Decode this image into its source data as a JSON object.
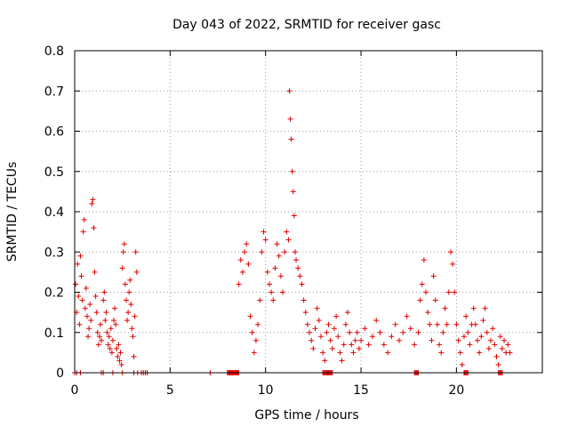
{
  "chart_data": {
    "type": "scatter",
    "title": "Day 043 of 2022, SRMTID for receiver gasc",
    "xlabel": "GPS time / hours",
    "ylabel": "SRMTID / TECUs",
    "xlim": [
      0,
      24.5
    ],
    "ylim": [
      0,
      0.8
    ],
    "xticks": [
      0,
      5,
      10,
      15,
      20
    ],
    "xtick_labels": [
      "0",
      "5",
      "10",
      "15",
      "20"
    ],
    "yticks": [
      0,
      0.1,
      0.2,
      0.3,
      0.4,
      0.5,
      0.6,
      0.7,
      0.8
    ],
    "ytick_labels": [
      "0",
      "0.1",
      "0.2",
      "0.3",
      "0.4",
      "0.5",
      "0.6",
      "0.7",
      "0.8"
    ],
    "grid": true,
    "marker": "+",
    "color": "#e00000",
    "series": [
      {
        "name": "SRMTID",
        "points": [
          [
            0.05,
            0.22
          ],
          [
            0.1,
            0.15
          ],
          [
            0.15,
            0.27
          ],
          [
            0.2,
            0.19
          ],
          [
            0.25,
            0.12
          ],
          [
            0.3,
            0.29
          ],
          [
            0.35,
            0.24
          ],
          [
            0.4,
            0.18
          ],
          [
            0.45,
            0.35
          ],
          [
            0.5,
            0.38
          ],
          [
            0.55,
            0.16
          ],
          [
            0.6,
            0.21
          ],
          [
            0.65,
            0.14
          ],
          [
            0.7,
            0.09
          ],
          [
            0.75,
            0.11
          ],
          [
            0.8,
            0.17
          ],
          [
            0.85,
            0.13
          ],
          [
            0.9,
            0.42
          ],
          [
            0.95,
            0.43
          ],
          [
            1.0,
            0.36
          ],
          [
            1.05,
            0.25
          ],
          [
            1.1,
            0.19
          ],
          [
            1.15,
            0.15
          ],
          [
            1.2,
            0.1
          ],
          [
            1.25,
            0.07
          ],
          [
            1.3,
            0.09
          ],
          [
            1.35,
            0.12
          ],
          [
            1.4,
            0.08
          ],
          [
            1.5,
            0.18
          ],
          [
            1.55,
            0.2
          ],
          [
            1.6,
            0.13
          ],
          [
            1.65,
            0.15
          ],
          [
            1.7,
            0.1
          ],
          [
            1.75,
            0.07
          ],
          [
            1.8,
            0.09
          ],
          [
            1.85,
            0.06
          ],
          [
            1.9,
            0.11
          ],
          [
            1.95,
            0.05
          ],
          [
            2.0,
            0.08
          ],
          [
            2.05,
            0.13
          ],
          [
            2.1,
            0.16
          ],
          [
            2.15,
            0.12
          ],
          [
            2.2,
            0.06
          ],
          [
            2.25,
            0.04
          ],
          [
            2.3,
            0.07
          ],
          [
            2.35,
            0.03
          ],
          [
            2.4,
            0.05
          ],
          [
            2.45,
            0.02
          ],
          [
            2.5,
            0.26
          ],
          [
            2.55,
            0.3
          ],
          [
            2.6,
            0.32
          ],
          [
            2.65,
            0.22
          ],
          [
            2.7,
            0.18
          ],
          [
            2.75,
            0.13
          ],
          [
            2.8,
            0.15
          ],
          [
            2.85,
            0.2
          ],
          [
            2.9,
            0.23
          ],
          [
            2.95,
            0.17
          ],
          [
            3.0,
            0.11
          ],
          [
            3.05,
            0.09
          ],
          [
            3.1,
            0.04
          ],
          [
            3.15,
            0.14
          ],
          [
            3.2,
            0.3
          ],
          [
            3.25,
            0.25
          ],
          [
            0.0,
            0.0
          ],
          [
            0.1,
            0.0
          ],
          [
            0.3,
            0.0
          ],
          [
            1.4,
            0.0
          ],
          [
            1.5,
            0.0
          ],
          [
            2.0,
            0.0
          ],
          [
            2.5,
            0.0
          ],
          [
            3.1,
            0.0
          ],
          [
            3.3,
            0.0
          ],
          [
            3.5,
            0.0
          ],
          [
            3.6,
            0.0
          ],
          [
            3.7,
            0.0
          ],
          [
            3.8,
            0.0
          ],
          [
            7.1,
            0.0
          ],
          [
            8.1,
            0.0
          ],
          [
            8.2,
            0.0
          ],
          [
            8.3,
            0.0
          ],
          [
            8.4,
            0.0
          ],
          [
            8.5,
            0.0
          ],
          [
            8.6,
            0.22
          ],
          [
            8.7,
            0.28
          ],
          [
            8.8,
            0.25
          ],
          [
            8.9,
            0.3
          ],
          [
            9.0,
            0.32
          ],
          [
            9.1,
            0.27
          ],
          [
            9.2,
            0.14
          ],
          [
            9.3,
            0.1
          ],
          [
            9.4,
            0.05
          ],
          [
            9.5,
            0.08
          ],
          [
            9.6,
            0.12
          ],
          [
            9.7,
            0.18
          ],
          [
            9.8,
            0.3
          ],
          [
            9.9,
            0.35
          ],
          [
            10.0,
            0.33
          ],
          [
            10.1,
            0.25
          ],
          [
            10.2,
            0.22
          ],
          [
            10.3,
            0.2
          ],
          [
            10.4,
            0.18
          ],
          [
            10.5,
            0.26
          ],
          [
            10.6,
            0.32
          ],
          [
            10.7,
            0.29
          ],
          [
            10.8,
            0.24
          ],
          [
            10.9,
            0.2
          ],
          [
            11.0,
            0.3
          ],
          [
            11.1,
            0.35
          ],
          [
            11.2,
            0.33
          ],
          [
            11.25,
            0.7
          ],
          [
            11.3,
            0.63
          ],
          [
            11.35,
            0.58
          ],
          [
            11.4,
            0.5
          ],
          [
            11.45,
            0.45
          ],
          [
            11.5,
            0.39
          ],
          [
            11.55,
            0.3
          ],
          [
            11.6,
            0.28
          ],
          [
            11.7,
            0.26
          ],
          [
            11.8,
            0.24
          ],
          [
            11.9,
            0.22
          ],
          [
            12.0,
            0.18
          ],
          [
            12.1,
            0.15
          ],
          [
            12.2,
            0.12
          ],
          [
            12.3,
            0.1
          ],
          [
            12.4,
            0.08
          ],
          [
            12.5,
            0.06
          ],
          [
            12.6,
            0.11
          ],
          [
            12.7,
            0.16
          ],
          [
            12.8,
            0.13
          ],
          [
            12.9,
            0.09
          ],
          [
            13.0,
            0.05
          ],
          [
            13.1,
            0.03
          ],
          [
            13.2,
            0.1
          ],
          [
            13.3,
            0.12
          ],
          [
            13.4,
            0.08
          ],
          [
            13.5,
            0.06
          ],
          [
            13.6,
            0.11
          ],
          [
            13.7,
            0.14
          ],
          [
            13.8,
            0.09
          ],
          [
            13.9,
            0.05
          ],
          [
            14.0,
            0.03
          ],
          [
            14.1,
            0.07
          ],
          [
            14.2,
            0.12
          ],
          [
            14.3,
            0.15
          ],
          [
            14.4,
            0.1
          ],
          [
            14.5,
            0.07
          ],
          [
            14.6,
            0.05
          ],
          [
            14.7,
            0.08
          ],
          [
            14.8,
            0.1
          ],
          [
            14.9,
            0.06
          ],
          [
            15.0,
            0.08
          ],
          [
            15.2,
            0.11
          ],
          [
            15.4,
            0.07
          ],
          [
            15.6,
            0.09
          ],
          [
            15.8,
            0.13
          ],
          [
            16.0,
            0.1
          ],
          [
            16.2,
            0.07
          ],
          [
            16.4,
            0.05
          ],
          [
            16.6,
            0.09
          ],
          [
            16.8,
            0.12
          ],
          [
            17.0,
            0.08
          ],
          [
            17.2,
            0.1
          ],
          [
            17.4,
            0.14
          ],
          [
            17.6,
            0.11
          ],
          [
            17.8,
            0.07
          ],
          [
            18.0,
            0.1
          ],
          [
            18.1,
            0.18
          ],
          [
            18.2,
            0.22
          ],
          [
            18.3,
            0.28
          ],
          [
            18.4,
            0.2
          ],
          [
            18.5,
            0.15
          ],
          [
            18.6,
            0.12
          ],
          [
            18.7,
            0.08
          ],
          [
            18.8,
            0.24
          ],
          [
            18.9,
            0.18
          ],
          [
            19.0,
            0.12
          ],
          [
            19.1,
            0.07
          ],
          [
            19.2,
            0.05
          ],
          [
            19.3,
            0.1
          ],
          [
            19.4,
            0.16
          ],
          [
            19.5,
            0.12
          ],
          [
            19.6,
            0.2
          ],
          [
            19.7,
            0.3
          ],
          [
            19.8,
            0.27
          ],
          [
            19.9,
            0.2
          ],
          [
            20.0,
            0.12
          ],
          [
            20.1,
            0.08
          ],
          [
            20.2,
            0.05
          ],
          [
            20.3,
            0.02
          ],
          [
            20.4,
            0.09
          ],
          [
            20.5,
            0.14
          ],
          [
            20.6,
            0.1
          ],
          [
            20.7,
            0.07
          ],
          [
            20.8,
            0.12
          ],
          [
            20.9,
            0.16
          ],
          [
            21.0,
            0.12
          ],
          [
            21.1,
            0.08
          ],
          [
            21.2,
            0.05
          ],
          [
            21.3,
            0.09
          ],
          [
            21.4,
            0.13
          ],
          [
            21.5,
            0.16
          ],
          [
            21.6,
            0.1
          ],
          [
            21.7,
            0.06
          ],
          [
            21.8,
            0.08
          ],
          [
            21.9,
            0.11
          ],
          [
            22.0,
            0.07
          ],
          [
            22.1,
            0.04
          ],
          [
            22.2,
            0.02
          ],
          [
            22.3,
            0.09
          ],
          [
            22.4,
            0.06
          ],
          [
            22.5,
            0.08
          ],
          [
            22.6,
            0.05
          ],
          [
            22.7,
            0.07
          ],
          [
            22.8,
            0.05
          ]
        ],
        "zero_run_ranges": [
          [
            8.0,
            8.6
          ],
          [
            13.0,
            13.5
          ],
          [
            17.8,
            18.0
          ],
          [
            20.4,
            20.6
          ],
          [
            22.2,
            22.4
          ]
        ]
      }
    ]
  }
}
